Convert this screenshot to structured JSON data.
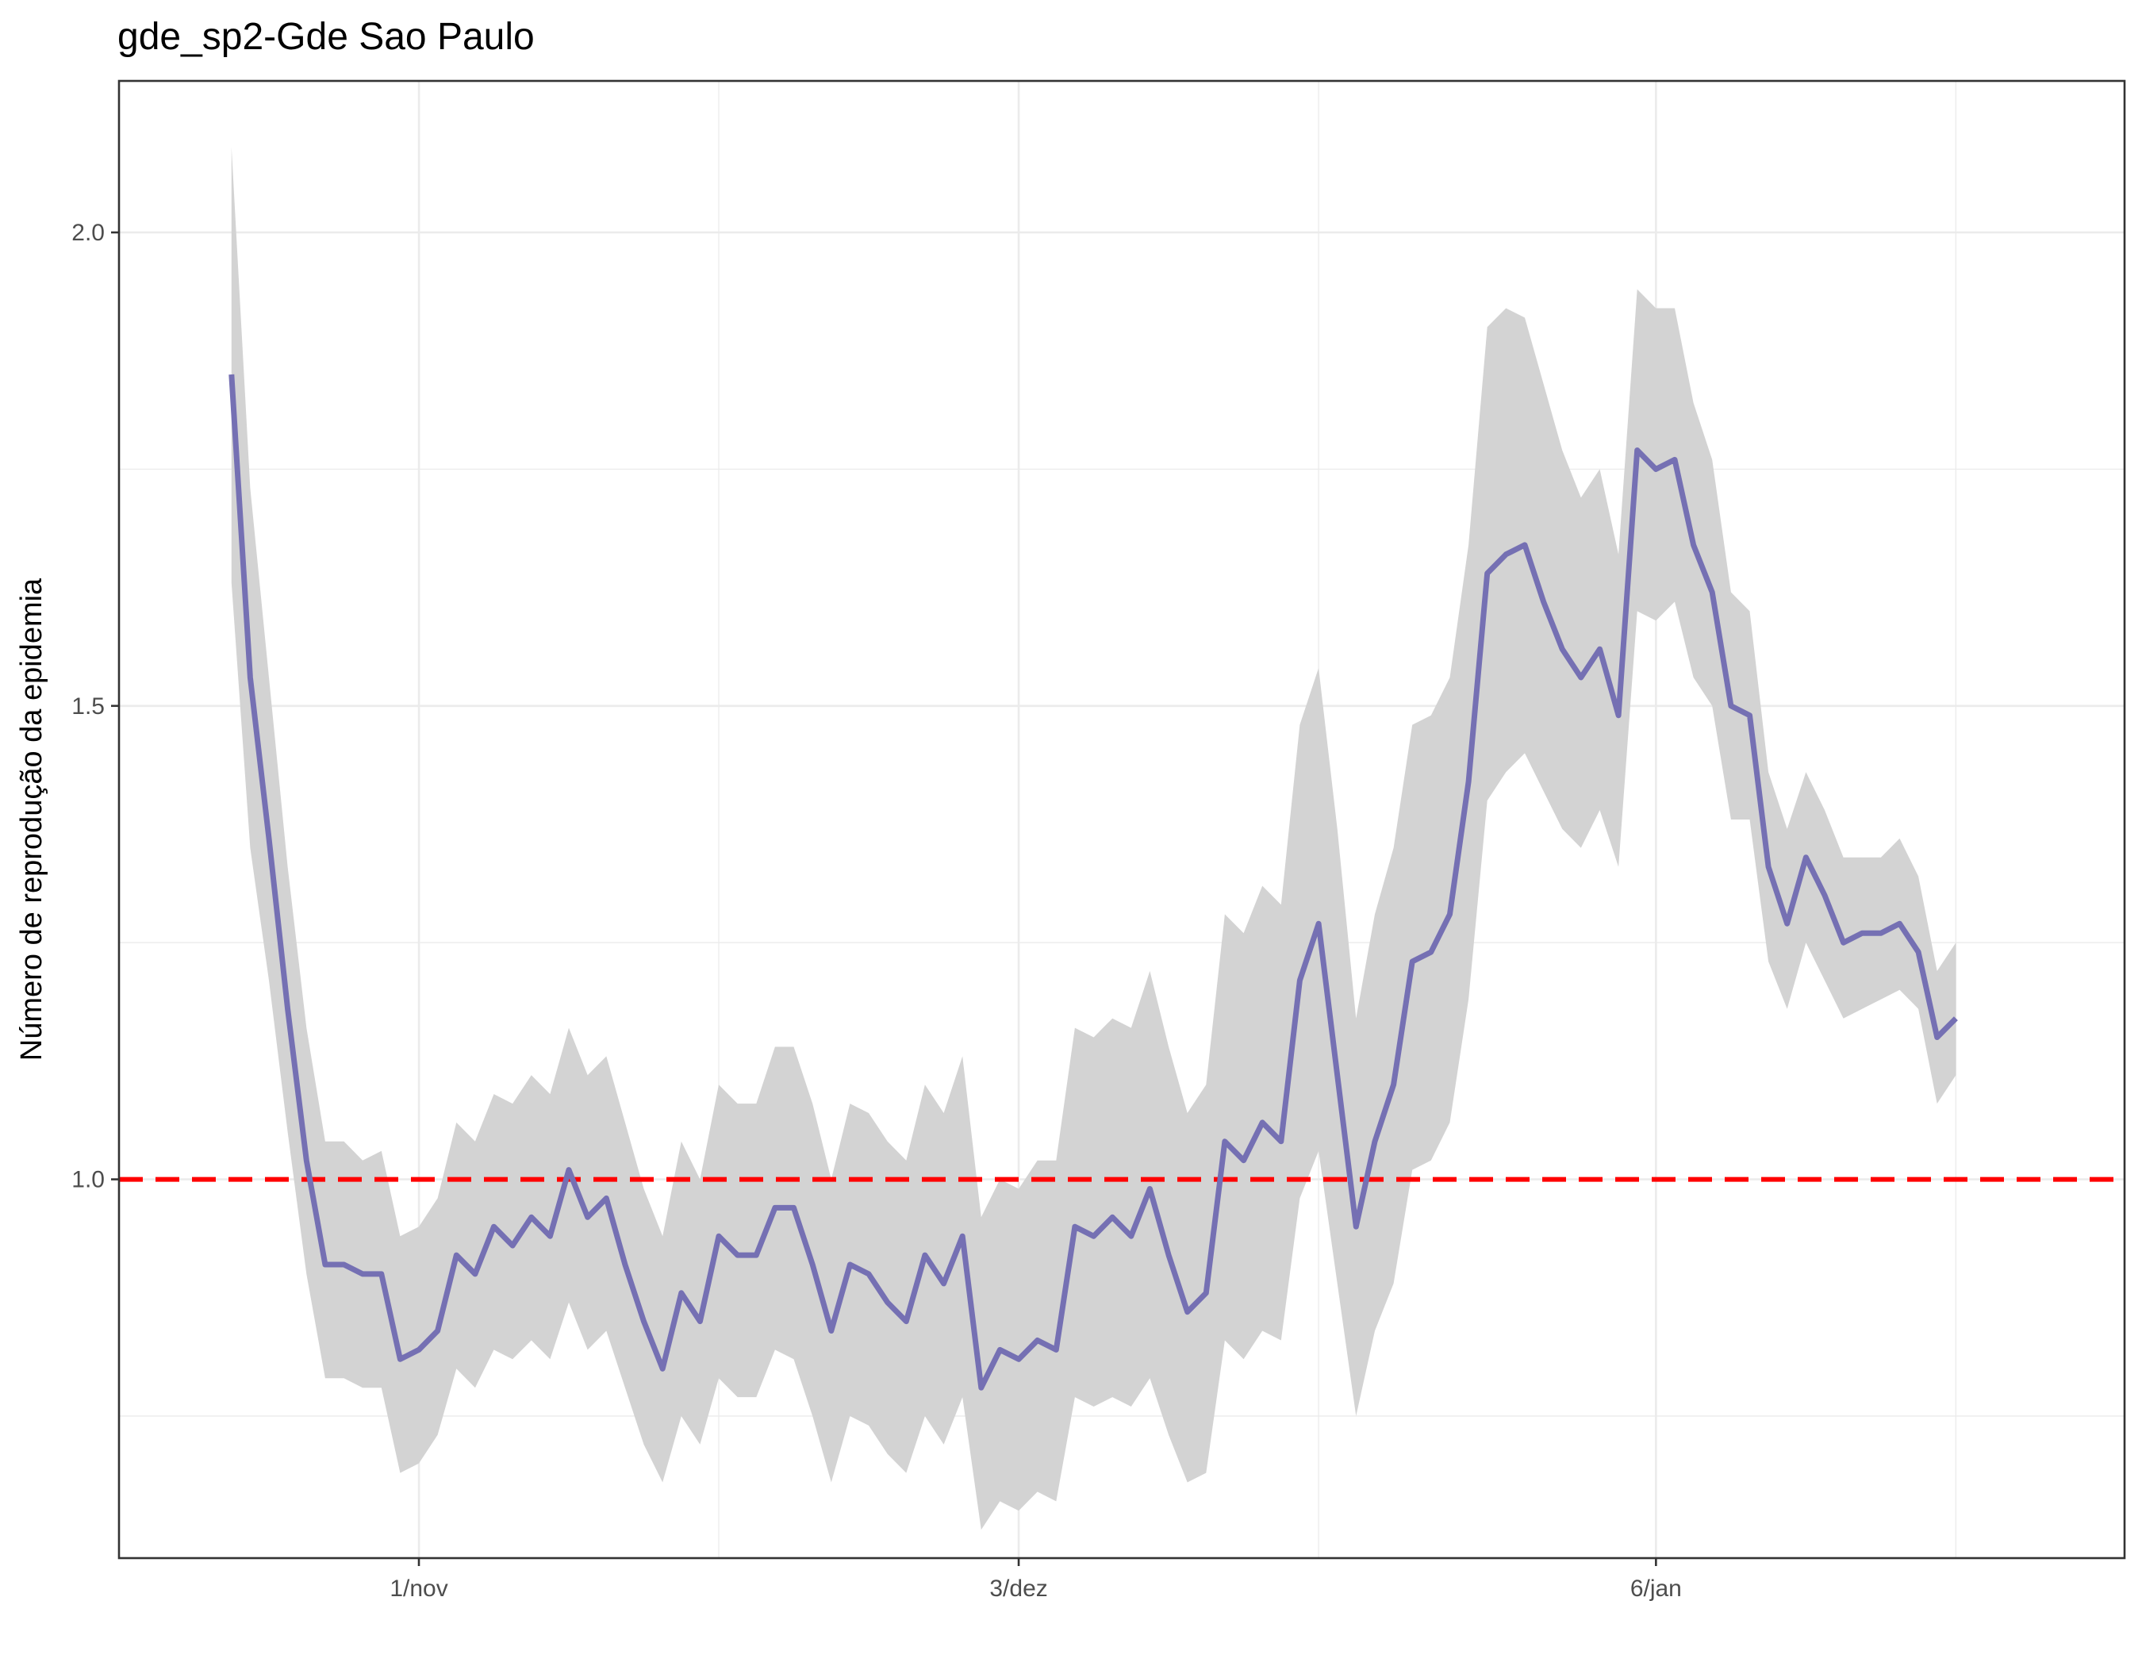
{
  "chart_data": {
    "type": "line",
    "title": "gde_sp2-Gde Sao Paulo",
    "xlabel": "",
    "ylabel": "Número de reprodução da epidemia",
    "x_start": "2020-10-22",
    "x_step_days": 1,
    "xlim": [
      "2020-10-16",
      "2021-01-31"
    ],
    "ylim": [
      0.6,
      2.16
    ],
    "x_ticks": [
      {
        "date": "2020-11-01",
        "label": "1/nov"
      },
      {
        "date": "2020-12-03",
        "label": "3/dez"
      },
      {
        "date": "2021-01-06",
        "label": "6/jan"
      }
    ],
    "x_minor_ticks": [
      "2020-11-17",
      "2020-12-19",
      "2021-01-22"
    ],
    "y_ticks": [
      {
        "value": 1.0,
        "label": "1.0"
      },
      {
        "value": 1.5,
        "label": "1.5"
      },
      {
        "value": 2.0,
        "label": "2.0"
      }
    ],
    "y_minor_ticks": [
      0.75,
      1.25,
      1.75
    ],
    "reference_line": {
      "value": 1.0,
      "color": "#ff0000",
      "style": "dashed"
    },
    "grid": true,
    "colors": {
      "line": "#7570b3",
      "ribbon": "#d3d3d3",
      "grid": "#ebebeb",
      "border": "#333333"
    },
    "series": [
      {
        "values": [
          1.85,
          1.53,
          1.36,
          1.18,
          1.02,
          0.91,
          0.91,
          0.9,
          0.9,
          0.81,
          0.82,
          0.84,
          0.92,
          0.9,
          0.95,
          0.93,
          0.96,
          0.94,
          1.01,
          0.96,
          0.98,
          0.91,
          0.85,
          0.8,
          0.88,
          0.85,
          0.94,
          0.92,
          0.92,
          0.97,
          0.97,
          0.91,
          0.84,
          0.91,
          0.9,
          0.87,
          0.85,
          0.92,
          0.89,
          0.94,
          0.78,
          0.82,
          0.81,
          0.83,
          0.82,
          0.95,
          0.94,
          0.96,
          0.94,
          0.99,
          0.92,
          0.86,
          0.88,
          1.04,
          1.02,
          1.06,
          1.04,
          1.21,
          1.27,
          1.11,
          0.95,
          1.04,
          1.1,
          1.23,
          1.24,
          1.28,
          1.42,
          1.64,
          1.66,
          1.67,
          1.61,
          1.56,
          1.53,
          1.56,
          1.49,
          1.77,
          1.75,
          1.76,
          1.67,
          1.62,
          1.5,
          1.49,
          1.33,
          1.27,
          1.34,
          1.3,
          1.25,
          1.26,
          1.26,
          1.27,
          1.24,
          1.15,
          1.17
        ],
        "lower": [
          1.63,
          1.35,
          1.21,
          1.05,
          0.9,
          0.79,
          0.79,
          0.78,
          0.78,
          0.69,
          0.7,
          0.73,
          0.8,
          0.78,
          0.82,
          0.81,
          0.83,
          0.81,
          0.87,
          0.82,
          0.84,
          0.78,
          0.72,
          0.68,
          0.75,
          0.72,
          0.79,
          0.77,
          0.77,
          0.82,
          0.81,
          0.75,
          0.68,
          0.75,
          0.74,
          0.71,
          0.69,
          0.75,
          0.72,
          0.77,
          0.63,
          0.66,
          0.65,
          0.67,
          0.66,
          0.77,
          0.76,
          0.77,
          0.76,
          0.79,
          0.73,
          0.68,
          0.69,
          0.83,
          0.81,
          0.84,
          0.83,
          0.98,
          1.03,
          0.89,
          0.75,
          0.84,
          0.89,
          1.01,
          1.02,
          1.06,
          1.19,
          1.4,
          1.43,
          1.45,
          1.41,
          1.37,
          1.35,
          1.39,
          1.33,
          1.6,
          1.59,
          1.61,
          1.53,
          1.5,
          1.38,
          1.38,
          1.23,
          1.18,
          1.25,
          1.21,
          1.17,
          1.18,
          1.19,
          1.2,
          1.18,
          1.08,
          1.11
        ],
        "upper": [
          2.09,
          1.73,
          1.53,
          1.33,
          1.16,
          1.04,
          1.04,
          1.02,
          1.03,
          0.94,
          0.95,
          0.98,
          1.06,
          1.04,
          1.09,
          1.08,
          1.11,
          1.09,
          1.16,
          1.11,
          1.13,
          1.06,
          0.99,
          0.94,
          1.04,
          1.0,
          1.1,
          1.08,
          1.08,
          1.14,
          1.14,
          1.08,
          1.0,
          1.08,
          1.07,
          1.04,
          1.02,
          1.1,
          1.07,
          1.13,
          0.96,
          1.0,
          0.99,
          1.02,
          1.02,
          1.16,
          1.15,
          1.17,
          1.16,
          1.22,
          1.14,
          1.07,
          1.1,
          1.28,
          1.26,
          1.31,
          1.29,
          1.48,
          1.54,
          1.37,
          1.17,
          1.28,
          1.35,
          1.48,
          1.49,
          1.53,
          1.67,
          1.9,
          1.92,
          1.91,
          1.84,
          1.77,
          1.72,
          1.75,
          1.66,
          1.94,
          1.92,
          1.92,
          1.82,
          1.76,
          1.62,
          1.6,
          1.43,
          1.37,
          1.43,
          1.39,
          1.34,
          1.34,
          1.34,
          1.36,
          1.32,
          1.22,
          1.25
        ]
      }
    ]
  }
}
